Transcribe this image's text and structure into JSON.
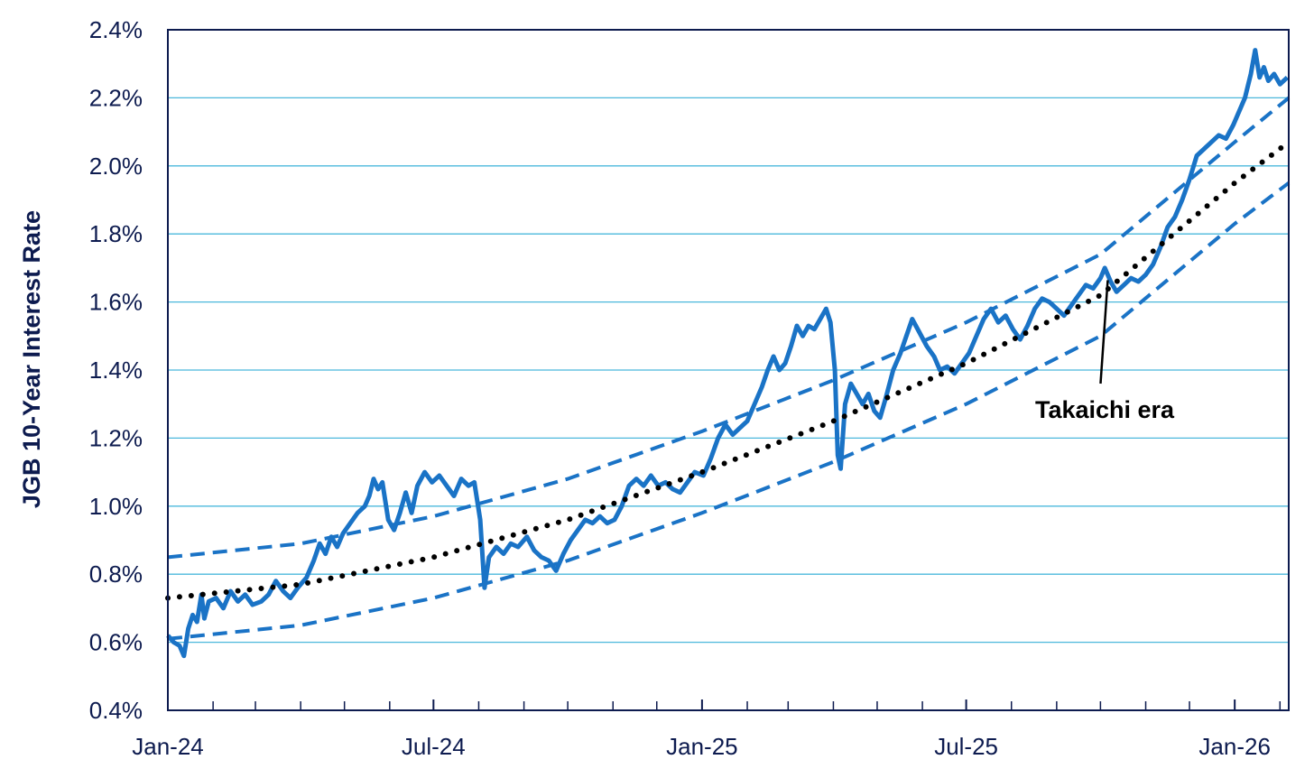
{
  "chart_data": {
    "type": "line",
    "ylabel": "JGB 10-Year Interest Rate",
    "xlabel": "",
    "title": "",
    "ylim": [
      0.4,
      2.4
    ],
    "xlim": [
      "2024-01-01",
      "2026-02-07"
    ],
    "yticks": [
      0.4,
      0.6,
      0.8,
      1.0,
      1.2,
      1.4,
      1.6,
      1.8,
      2.0,
      2.2,
      2.4
    ],
    "ytick_labels": [
      "0.4%",
      "0.6%",
      "0.8%",
      "1.0%",
      "1.2%",
      "1.4%",
      "1.6%",
      "1.8%",
      "2.0%",
      "2.2%",
      "2.4%"
    ],
    "xtick_labels": [
      {
        "date": "2024-01-01",
        "label": "Jan-24"
      },
      {
        "date": "2024-07-01",
        "label": "Jul-24"
      },
      {
        "date": "2025-01-01",
        "label": "Jan-25"
      },
      {
        "date": "2025-07-01",
        "label": "Jul-25"
      },
      {
        "date": "2026-01-01",
        "label": "Jan-26"
      }
    ],
    "minor_tick_dates": [
      "2024-02-01",
      "2024-03-01",
      "2024-04-01",
      "2024-05-01",
      "2024-06-01",
      "2024-08-01",
      "2024-09-01",
      "2024-10-01",
      "2024-11-01",
      "2024-12-01",
      "2025-02-01",
      "2025-03-01",
      "2025-04-01",
      "2025-05-01",
      "2025-06-01",
      "2025-08-01",
      "2025-09-01",
      "2025-10-01",
      "2025-11-01",
      "2025-12-01",
      "2026-02-01"
    ],
    "grid": "horizontal",
    "colors": {
      "series": "#1a73c6",
      "band": "#1a73c6",
      "trend": "#000000",
      "grid": "#4bb8dc",
      "axis_text": "#0d1b4f",
      "frame": "#0d1b4f"
    },
    "series": [
      {
        "style": "solid",
        "points": [
          [
            "2024-01-01",
            0.62
          ],
          [
            "2024-01-05",
            0.6
          ],
          [
            "2024-01-09",
            0.59
          ],
          [
            "2024-01-12",
            0.56
          ],
          [
            "2024-01-15",
            0.64
          ],
          [
            "2024-01-18",
            0.68
          ],
          [
            "2024-01-21",
            0.66
          ],
          [
            "2024-01-24",
            0.74
          ],
          [
            "2024-01-26",
            0.67
          ],
          [
            "2024-01-29",
            0.72
          ],
          [
            "2024-02-03",
            0.73
          ],
          [
            "2024-02-08",
            0.7
          ],
          [
            "2024-02-13",
            0.75
          ],
          [
            "2024-02-18",
            0.72
          ],
          [
            "2024-02-23",
            0.74
          ],
          [
            "2024-02-28",
            0.71
          ],
          [
            "2024-03-05",
            0.72
          ],
          [
            "2024-03-10",
            0.74
          ],
          [
            "2024-03-15",
            0.78
          ],
          [
            "2024-03-20",
            0.75
          ],
          [
            "2024-03-25",
            0.73
          ],
          [
            "2024-03-30",
            0.76
          ],
          [
            "2024-04-05",
            0.79
          ],
          [
            "2024-04-10",
            0.84
          ],
          [
            "2024-04-14",
            0.89
          ],
          [
            "2024-04-18",
            0.86
          ],
          [
            "2024-04-22",
            0.91
          ],
          [
            "2024-04-26",
            0.88
          ],
          [
            "2024-04-30",
            0.92
          ],
          [
            "2024-05-05",
            0.95
          ],
          [
            "2024-05-10",
            0.98
          ],
          [
            "2024-05-15",
            1.0
          ],
          [
            "2024-05-18",
            1.03
          ],
          [
            "2024-05-21",
            1.08
          ],
          [
            "2024-05-24",
            1.05
          ],
          [
            "2024-05-27",
            1.07
          ],
          [
            "2024-05-31",
            0.96
          ],
          [
            "2024-06-04",
            0.93
          ],
          [
            "2024-06-08",
            0.98
          ],
          [
            "2024-06-12",
            1.04
          ],
          [
            "2024-06-16",
            0.98
          ],
          [
            "2024-06-20",
            1.06
          ],
          [
            "2024-06-25",
            1.1
          ],
          [
            "2024-06-30",
            1.07
          ],
          [
            "2024-07-05",
            1.09
          ],
          [
            "2024-07-10",
            1.06
          ],
          [
            "2024-07-15",
            1.03
          ],
          [
            "2024-07-20",
            1.08
          ],
          [
            "2024-07-25",
            1.06
          ],
          [
            "2024-07-29",
            1.07
          ],
          [
            "2024-08-02",
            0.96
          ],
          [
            "2024-08-05",
            0.76
          ],
          [
            "2024-08-08",
            0.85
          ],
          [
            "2024-08-13",
            0.88
          ],
          [
            "2024-08-18",
            0.86
          ],
          [
            "2024-08-23",
            0.89
          ],
          [
            "2024-08-28",
            0.88
          ],
          [
            "2024-09-03",
            0.91
          ],
          [
            "2024-09-08",
            0.87
          ],
          [
            "2024-09-13",
            0.85
          ],
          [
            "2024-09-18",
            0.84
          ],
          [
            "2024-09-23",
            0.81
          ],
          [
            "2024-09-28",
            0.86
          ],
          [
            "2024-10-03",
            0.9
          ],
          [
            "2024-10-08",
            0.93
          ],
          [
            "2024-10-13",
            0.96
          ],
          [
            "2024-10-18",
            0.95
          ],
          [
            "2024-10-23",
            0.97
          ],
          [
            "2024-10-28",
            0.95
          ],
          [
            "2024-11-02",
            0.96
          ],
          [
            "2024-11-07",
            1.0
          ],
          [
            "2024-11-12",
            1.06
          ],
          [
            "2024-11-17",
            1.08
          ],
          [
            "2024-11-22",
            1.06
          ],
          [
            "2024-11-27",
            1.09
          ],
          [
            "2024-12-02",
            1.06
          ],
          [
            "2024-12-07",
            1.07
          ],
          [
            "2024-12-12",
            1.05
          ],
          [
            "2024-12-17",
            1.04
          ],
          [
            "2024-12-22",
            1.07
          ],
          [
            "2024-12-27",
            1.1
          ],
          [
            "2025-01-02",
            1.09
          ],
          [
            "2025-01-07",
            1.14
          ],
          [
            "2025-01-12",
            1.2
          ],
          [
            "2025-01-17",
            1.24
          ],
          [
            "2025-01-22",
            1.21
          ],
          [
            "2025-01-27",
            1.23
          ],
          [
            "2025-02-01",
            1.25
          ],
          [
            "2025-02-06",
            1.3
          ],
          [
            "2025-02-11",
            1.35
          ],
          [
            "2025-02-15",
            1.4
          ],
          [
            "2025-02-19",
            1.44
          ],
          [
            "2025-02-23",
            1.4
          ],
          [
            "2025-02-27",
            1.42
          ],
          [
            "2025-03-03",
            1.47
          ],
          [
            "2025-03-07",
            1.53
          ],
          [
            "2025-03-11",
            1.5
          ],
          [
            "2025-03-15",
            1.53
          ],
          [
            "2025-03-19",
            1.52
          ],
          [
            "2025-03-23",
            1.55
          ],
          [
            "2025-03-27",
            1.58
          ],
          [
            "2025-03-30",
            1.54
          ],
          [
            "2025-04-02",
            1.4
          ],
          [
            "2025-04-04",
            1.15
          ],
          [
            "2025-04-06",
            1.11
          ],
          [
            "2025-04-09",
            1.3
          ],
          [
            "2025-04-13",
            1.36
          ],
          [
            "2025-04-17",
            1.33
          ],
          [
            "2025-04-21",
            1.3
          ],
          [
            "2025-04-25",
            1.33
          ],
          [
            "2025-04-29",
            1.28
          ],
          [
            "2025-05-03",
            1.26
          ],
          [
            "2025-05-07",
            1.32
          ],
          [
            "2025-05-12",
            1.4
          ],
          [
            "2025-05-17",
            1.45
          ],
          [
            "2025-05-21",
            1.5
          ],
          [
            "2025-05-25",
            1.55
          ],
          [
            "2025-05-30",
            1.51
          ],
          [
            "2025-06-04",
            1.47
          ],
          [
            "2025-06-09",
            1.44
          ],
          [
            "2025-06-13",
            1.4
          ],
          [
            "2025-06-18",
            1.41
          ],
          [
            "2025-06-23",
            1.39
          ],
          [
            "2025-06-28",
            1.42
          ],
          [
            "2025-07-03",
            1.45
          ],
          [
            "2025-07-08",
            1.5
          ],
          [
            "2025-07-13",
            1.55
          ],
          [
            "2025-07-18",
            1.58
          ],
          [
            "2025-07-23",
            1.54
          ],
          [
            "2025-07-28",
            1.56
          ],
          [
            "2025-08-02",
            1.52
          ],
          [
            "2025-08-07",
            1.49
          ],
          [
            "2025-08-12",
            1.53
          ],
          [
            "2025-08-17",
            1.58
          ],
          [
            "2025-08-22",
            1.61
          ],
          [
            "2025-08-27",
            1.6
          ],
          [
            "2025-09-01",
            1.58
          ],
          [
            "2025-09-06",
            1.56
          ],
          [
            "2025-09-11",
            1.59
          ],
          [
            "2025-09-16",
            1.62
          ],
          [
            "2025-09-21",
            1.65
          ],
          [
            "2025-09-26",
            1.64
          ],
          [
            "2025-10-01",
            1.67
          ],
          [
            "2025-10-04",
            1.7
          ],
          [
            "2025-10-08",
            1.66
          ],
          [
            "2025-10-12",
            1.63
          ],
          [
            "2025-10-17",
            1.65
          ],
          [
            "2025-10-22",
            1.67
          ],
          [
            "2025-10-27",
            1.66
          ],
          [
            "2025-11-01",
            1.68
          ],
          [
            "2025-11-06",
            1.71
          ],
          [
            "2025-11-11",
            1.76
          ],
          [
            "2025-11-16",
            1.82
          ],
          [
            "2025-11-21",
            1.85
          ],
          [
            "2025-11-26",
            1.9
          ],
          [
            "2025-12-01",
            1.96
          ],
          [
            "2025-12-06",
            2.03
          ],
          [
            "2025-12-11",
            2.05
          ],
          [
            "2025-12-16",
            2.07
          ],
          [
            "2025-12-21",
            2.09
          ],
          [
            "2025-12-26",
            2.08
          ],
          [
            "2025-12-31",
            2.12
          ],
          [
            "2026-01-04",
            2.16
          ],
          [
            "2026-01-08",
            2.2
          ],
          [
            "2026-01-12",
            2.27
          ],
          [
            "2026-01-15",
            2.34
          ],
          [
            "2026-01-18",
            2.26
          ],
          [
            "2026-01-21",
            2.29
          ],
          [
            "2026-01-24",
            2.25
          ],
          [
            "2026-01-28",
            2.27
          ],
          [
            "2026-02-01",
            2.24
          ],
          [
            "2026-02-06",
            2.26
          ]
        ]
      },
      {
        "style": "dotted",
        "points": [
          [
            "2024-01-01",
            0.73
          ],
          [
            "2024-04-01",
            0.77
          ],
          [
            "2024-07-01",
            0.85
          ],
          [
            "2024-10-01",
            0.96
          ],
          [
            "2025-01-01",
            1.1
          ],
          [
            "2025-04-01",
            1.25
          ],
          [
            "2025-07-01",
            1.42
          ],
          [
            "2025-10-01",
            1.62
          ],
          [
            "2026-01-01",
            1.95
          ],
          [
            "2026-02-07",
            2.07
          ]
        ]
      },
      {
        "style": "dashed",
        "points": [
          [
            "2024-01-01",
            0.85
          ],
          [
            "2024-04-01",
            0.89
          ],
          [
            "2024-07-01",
            0.97
          ],
          [
            "2024-10-01",
            1.08
          ],
          [
            "2025-01-01",
            1.22
          ],
          [
            "2025-04-01",
            1.37
          ],
          [
            "2025-07-01",
            1.54
          ],
          [
            "2025-10-01",
            1.74
          ],
          [
            "2026-01-01",
            2.07
          ],
          [
            "2026-02-07",
            2.2
          ]
        ]
      },
      {
        "style": "dashed",
        "points": [
          [
            "2024-01-01",
            0.61
          ],
          [
            "2024-04-01",
            0.65
          ],
          [
            "2024-07-01",
            0.73
          ],
          [
            "2024-10-01",
            0.84
          ],
          [
            "2025-01-01",
            0.98
          ],
          [
            "2025-04-01",
            1.13
          ],
          [
            "2025-07-01",
            1.3
          ],
          [
            "2025-10-01",
            1.5
          ],
          [
            "2026-01-01",
            1.83
          ],
          [
            "2026-02-07",
            1.95
          ]
        ]
      }
    ],
    "annotations": [
      {
        "text": "Takaichi era",
        "target": [
          "2025-10-06",
          1.68
        ]
      }
    ]
  }
}
